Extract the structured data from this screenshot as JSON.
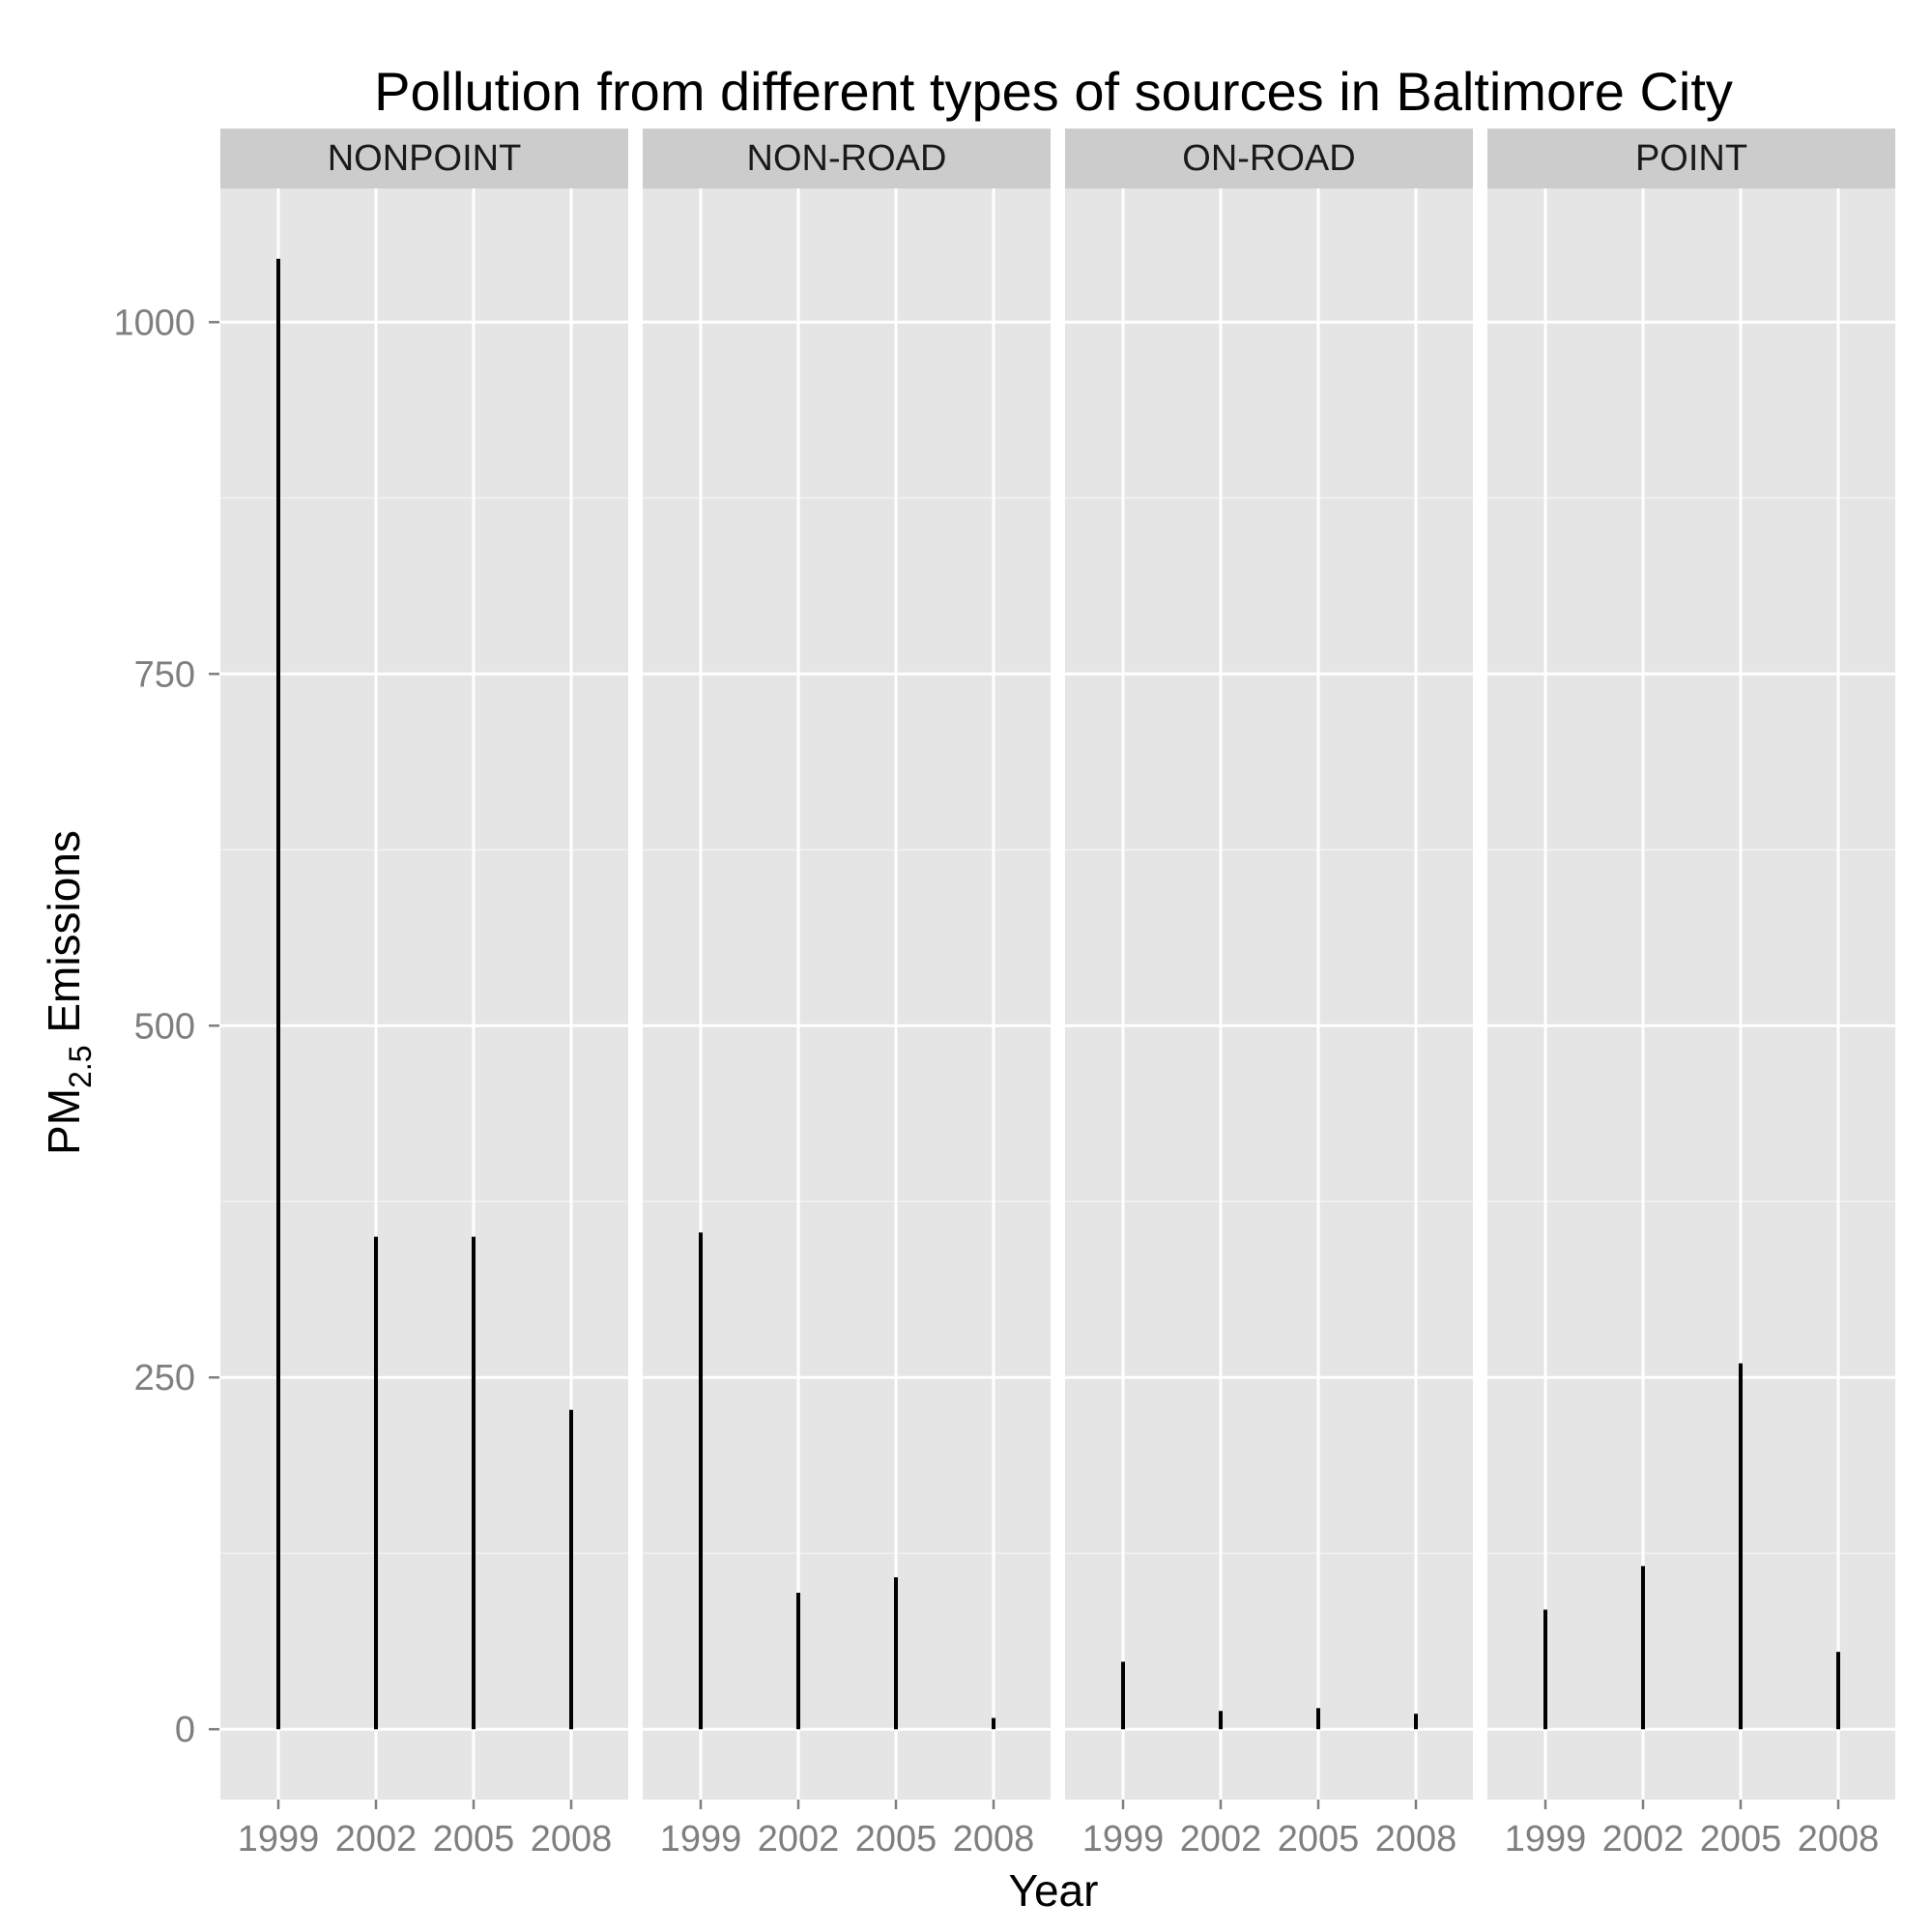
{
  "chart_data": {
    "type": "bar",
    "title": "Pollution from different types of sources in Baltimore City",
    "xlabel": "Year",
    "ylabel": {
      "main": "PM",
      "sub": "2.5",
      "rest": " Emissions"
    },
    "categories": [
      "1999",
      "2002",
      "2005",
      "2008"
    ],
    "yticks": [
      "0",
      "250",
      "500",
      "750",
      "1000"
    ],
    "ylim": [
      -50,
      1095
    ],
    "grid": true,
    "facets": [
      {
        "name": "NONPOINT",
        "values": [
          1045,
          350,
          350,
          227
        ]
      },
      {
        "name": "NON-ROAD",
        "values": [
          353,
          97,
          108,
          8
        ]
      },
      {
        "name": "ON-ROAD",
        "values": [
          48,
          13,
          15,
          11
        ]
      },
      {
        "name": "POINT",
        "values": [
          85,
          116,
          260,
          55
        ]
      }
    ]
  },
  "colors": {
    "panel_background": "#e5e5e5",
    "strip_background": "#cccccc",
    "grid_major": "#ffffff",
    "grid_minor": "#f2f2f2",
    "bar": "#000000",
    "tick_text": "#7f7f7f",
    "title_text": "#000000"
  }
}
